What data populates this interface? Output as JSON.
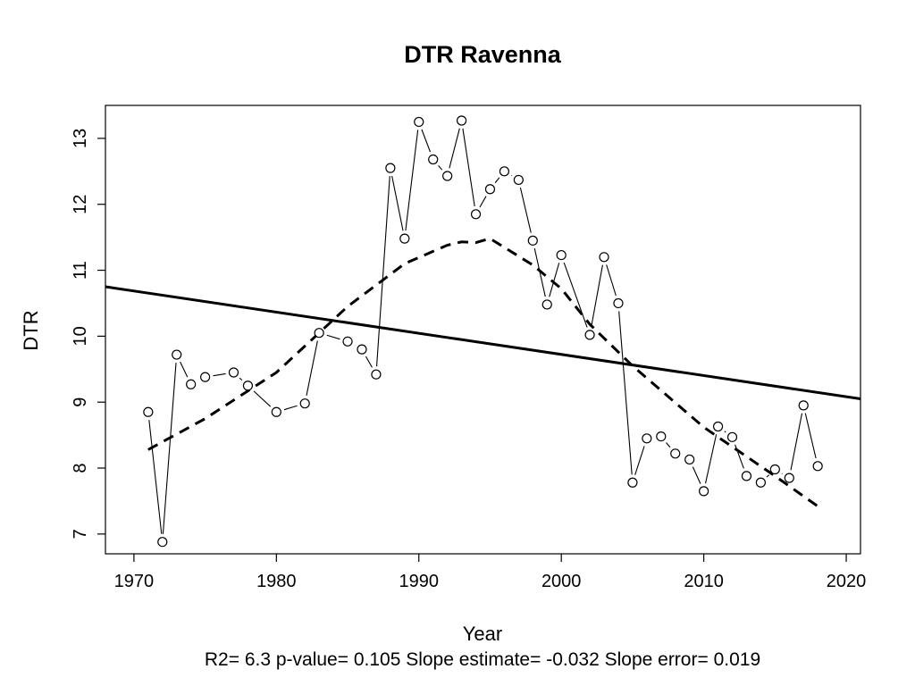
{
  "chart_data": {
    "type": "line",
    "title": "DTR   Ravenna",
    "xlabel": "Year",
    "ylabel": "DTR",
    "footer": "R2= 6.3  p-value= 0.105  Slope estimate= -0.032  Slope error= 0.019",
    "xlim": [
      1968,
      2021
    ],
    "ylim": [
      6.7,
      13.5
    ],
    "x_ticks": [
      1970,
      1980,
      1990,
      2000,
      2010,
      2020
    ],
    "y_ticks": [
      7,
      8,
      9,
      10,
      11,
      12,
      13
    ],
    "grid": false,
    "series": [
      {
        "style": "points-connected",
        "x": [
          1971,
          1972,
          1973,
          1974,
          1975,
          1977,
          1978,
          1980,
          1982,
          1983,
          1985,
          1986,
          1987,
          1988,
          1989,
          1990,
          1991,
          1992,
          1993,
          1994,
          1995,
          1996,
          1997,
          1998,
          1999,
          2000,
          2002,
          2003,
          2004,
          2005,
          2006,
          2007,
          2008,
          2009,
          2010,
          2011,
          2012,
          2013,
          2014,
          2015,
          2016,
          2017,
          2018
        ],
        "y": [
          8.85,
          6.88,
          9.72,
          9.27,
          9.38,
          9.45,
          9.25,
          8.85,
          8.98,
          10.05,
          9.92,
          9.8,
          9.42,
          12.55,
          11.48,
          13.25,
          12.68,
          12.43,
          13.27,
          11.85,
          12.23,
          12.5,
          12.37,
          11.45,
          10.48,
          11.23,
          10.02,
          11.2,
          10.5,
          7.78,
          8.45,
          8.48,
          8.22,
          8.13,
          7.65,
          8.63,
          8.47,
          7.88,
          7.78,
          7.98,
          7.85,
          8.95,
          8.03
        ]
      },
      {
        "style": "solid-trend",
        "x": [
          1968,
          2021
        ],
        "y": [
          10.75,
          9.05
        ]
      },
      {
        "style": "dashed-smooth",
        "x": [
          1971,
          1975,
          1980,
          1985,
          1989,
          1992,
          1993,
          1994,
          1995,
          1998,
          2000,
          2002,
          2005,
          2010,
          2015,
          2018
        ],
        "y": [
          8.28,
          8.75,
          9.45,
          10.45,
          11.1,
          11.38,
          11.43,
          11.42,
          11.48,
          11.08,
          10.72,
          10.18,
          9.55,
          8.62,
          7.88,
          7.42
        ]
      }
    ]
  }
}
